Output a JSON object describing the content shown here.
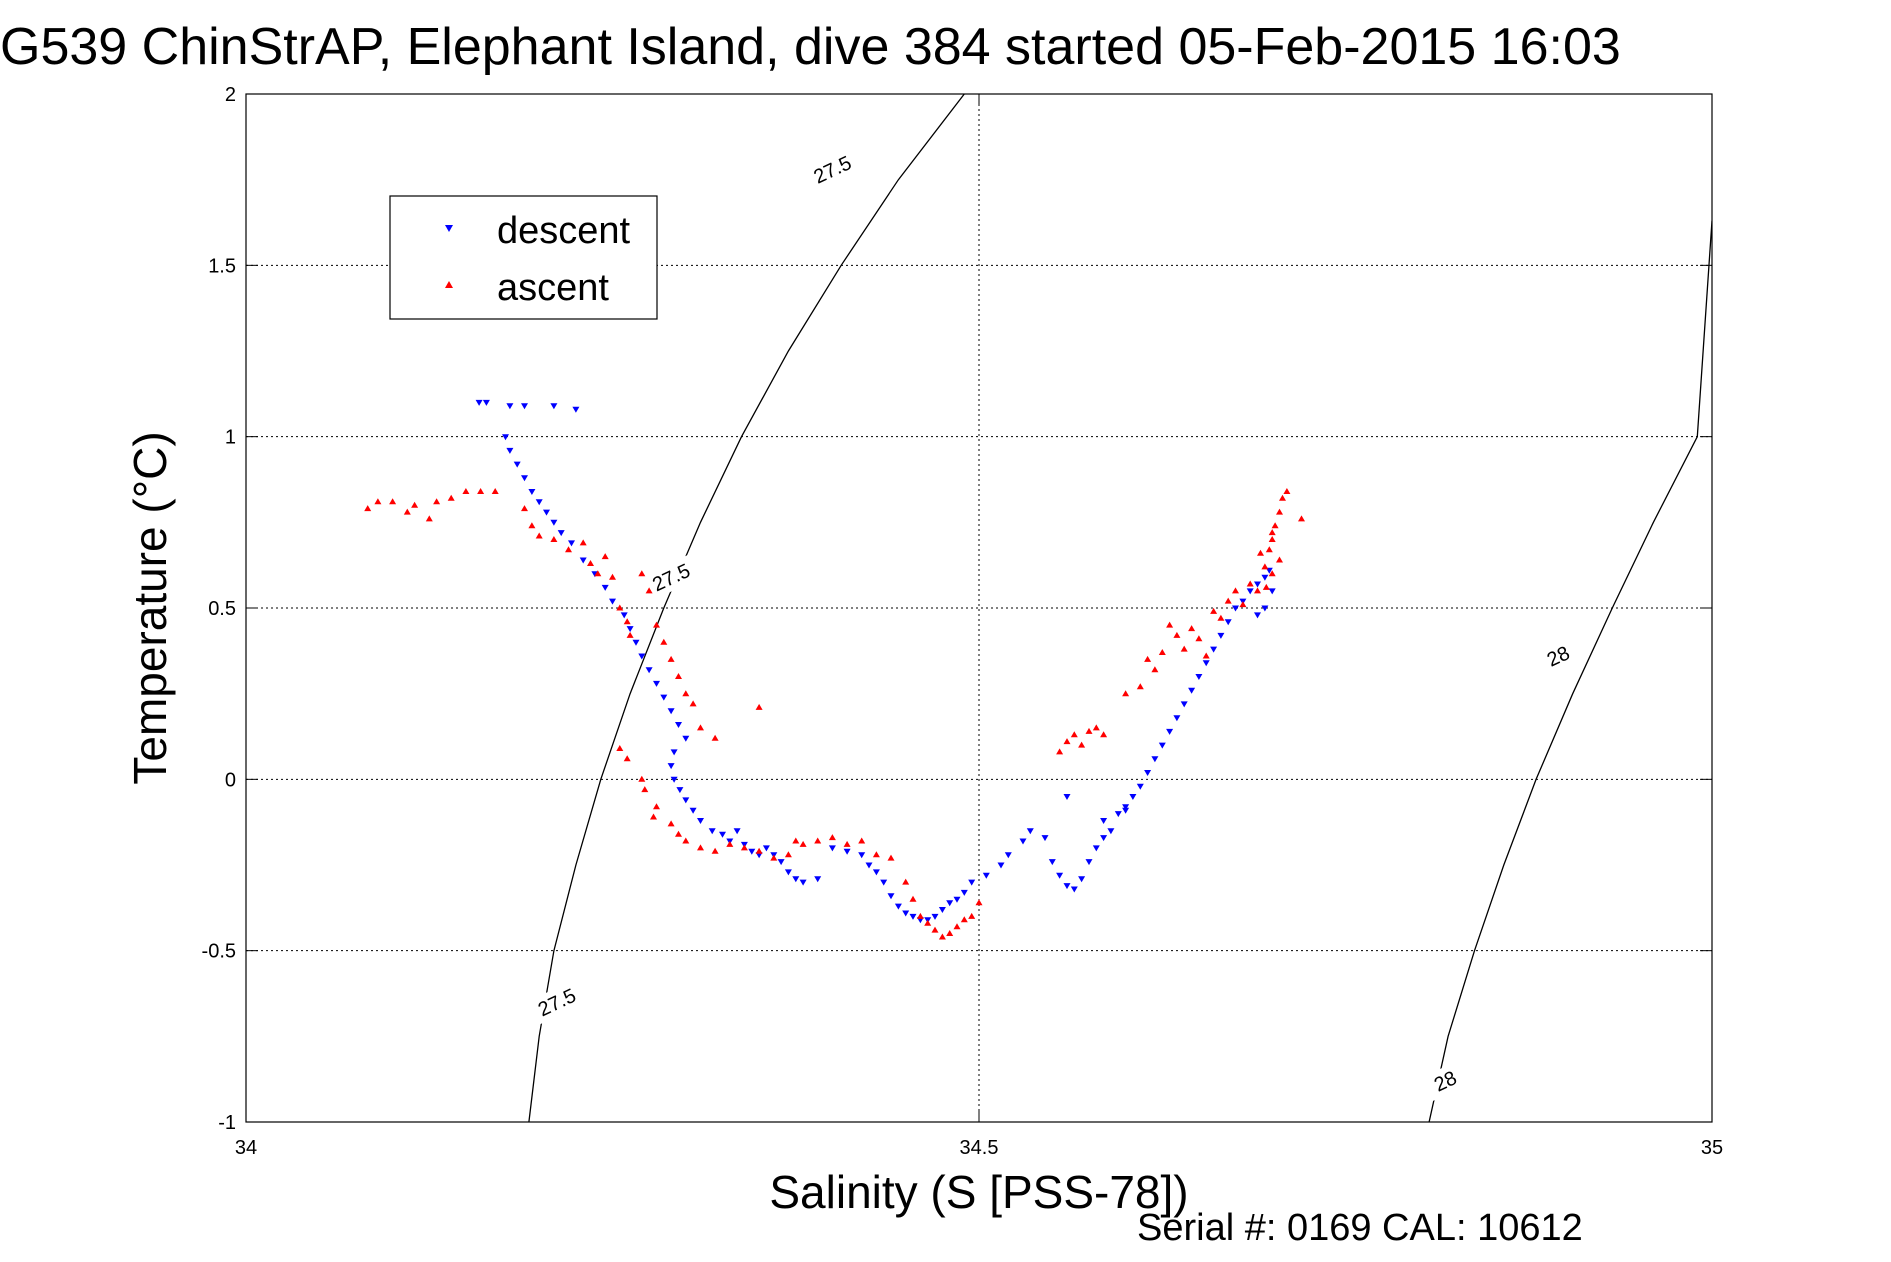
{
  "chart_data": {
    "type": "scatter",
    "title": "G539 ChinStrAP, Elephant Island, dive 384 started 05-Feb-2015 16:03",
    "xlabel": "Salinity (S [PSS-78])",
    "ylabel": "Temperature (°C)",
    "xlim": [
      34,
      35
    ],
    "ylim": [
      -1,
      2
    ],
    "xticks": [
      "34",
      "34.5",
      "35"
    ],
    "yticks": [
      "2",
      "1.5",
      "1",
      "0.5",
      "0",
      "-0.5",
      "-1"
    ],
    "grid": true,
    "legend_position": "top-left",
    "footer": "Serial #: 0169 CAL: 10612",
    "series": [
      {
        "name": "descent",
        "color": "#0000ff",
        "marker": "triangle-down",
        "points": [
          [
            34.159,
            1.1
          ],
          [
            34.164,
            1.1
          ],
          [
            34.18,
            1.09
          ],
          [
            34.19,
            1.09
          ],
          [
            34.21,
            1.09
          ],
          [
            34.225,
            1.08
          ],
          [
            34.177,
            1.0
          ],
          [
            34.18,
            0.96
          ],
          [
            34.185,
            0.92
          ],
          [
            34.19,
            0.88
          ],
          [
            34.195,
            0.84
          ],
          [
            34.2,
            0.81
          ],
          [
            34.205,
            0.78
          ],
          [
            34.21,
            0.75
          ],
          [
            34.215,
            0.72
          ],
          [
            34.222,
            0.69
          ],
          [
            34.23,
            0.64
          ],
          [
            34.238,
            0.6
          ],
          [
            34.245,
            0.56
          ],
          [
            34.25,
            0.52
          ],
          [
            34.258,
            0.48
          ],
          [
            34.262,
            0.44
          ],
          [
            34.266,
            0.4
          ],
          [
            34.27,
            0.36
          ],
          [
            34.275,
            0.32
          ],
          [
            34.28,
            0.28
          ],
          [
            34.285,
            0.24
          ],
          [
            34.29,
            0.2
          ],
          [
            34.295,
            0.16
          ],
          [
            34.3,
            0.12
          ],
          [
            34.292,
            0.08
          ],
          [
            34.29,
            0.04
          ],
          [
            34.292,
            0.0
          ],
          [
            34.296,
            -0.03
          ],
          [
            34.3,
            -0.06
          ],
          [
            34.305,
            -0.09
          ],
          [
            34.31,
            -0.12
          ],
          [
            34.318,
            -0.15
          ],
          [
            34.325,
            -0.16
          ],
          [
            34.33,
            -0.18
          ],
          [
            34.335,
            -0.15
          ],
          [
            34.34,
            -0.19
          ],
          [
            34.345,
            -0.21
          ],
          [
            34.35,
            -0.22
          ],
          [
            34.355,
            -0.2
          ],
          [
            34.36,
            -0.22
          ],
          [
            34.365,
            -0.24
          ],
          [
            34.37,
            -0.27
          ],
          [
            34.375,
            -0.29
          ],
          [
            34.38,
            -0.3
          ],
          [
            34.39,
            -0.29
          ],
          [
            34.4,
            -0.2
          ],
          [
            34.41,
            -0.21
          ],
          [
            34.42,
            -0.22
          ],
          [
            34.425,
            -0.25
          ],
          [
            34.43,
            -0.27
          ],
          [
            34.435,
            -0.3
          ],
          [
            34.44,
            -0.34
          ],
          [
            34.445,
            -0.37
          ],
          [
            34.45,
            -0.39
          ],
          [
            34.455,
            -0.4
          ],
          [
            34.46,
            -0.41
          ],
          [
            34.465,
            -0.41
          ],
          [
            34.47,
            -0.4
          ],
          [
            34.475,
            -0.38
          ],
          [
            34.48,
            -0.36
          ],
          [
            34.485,
            -0.35
          ],
          [
            34.49,
            -0.33
          ],
          [
            34.495,
            -0.3
          ],
          [
            34.505,
            -0.28
          ],
          [
            34.515,
            -0.25
          ],
          [
            34.52,
            -0.22
          ],
          [
            34.53,
            -0.18
          ],
          [
            34.535,
            -0.15
          ],
          [
            34.545,
            -0.17
          ],
          [
            34.55,
            -0.24
          ],
          [
            34.555,
            -0.28
          ],
          [
            34.56,
            -0.31
          ],
          [
            34.565,
            -0.32
          ],
          [
            34.57,
            -0.29
          ],
          [
            34.575,
            -0.24
          ],
          [
            34.58,
            -0.2
          ],
          [
            34.585,
            -0.17
          ],
          [
            34.59,
            -0.15
          ],
          [
            34.595,
            -0.1
          ],
          [
            34.6,
            -0.08
          ],
          [
            34.605,
            -0.05
          ],
          [
            34.61,
            -0.02
          ],
          [
            34.615,
            0.02
          ],
          [
            34.62,
            0.06
          ],
          [
            34.625,
            0.1
          ],
          [
            34.63,
            0.14
          ],
          [
            34.635,
            0.18
          ],
          [
            34.64,
            0.22
          ],
          [
            34.645,
            0.26
          ],
          [
            34.65,
            0.3
          ],
          [
            34.655,
            0.34
          ],
          [
            34.66,
            0.38
          ],
          [
            34.665,
            0.42
          ],
          [
            34.67,
            0.46
          ],
          [
            34.675,
            0.5
          ],
          [
            34.68,
            0.52
          ],
          [
            34.685,
            0.55
          ],
          [
            34.69,
            0.57
          ],
          [
            34.695,
            0.59
          ],
          [
            34.698,
            0.61
          ],
          [
            34.7,
            0.55
          ],
          [
            34.695,
            0.5
          ],
          [
            34.69,
            0.48
          ],
          [
            34.6,
            -0.09
          ],
          [
            34.585,
            -0.12
          ],
          [
            34.56,
            -0.05
          ]
        ]
      },
      {
        "name": "ascent",
        "color": "#ff0000",
        "marker": "triangle-up",
        "points": [
          [
            34.083,
            0.79
          ],
          [
            34.09,
            0.81
          ],
          [
            34.1,
            0.81
          ],
          [
            34.11,
            0.78
          ],
          [
            34.115,
            0.8
          ],
          [
            34.125,
            0.76
          ],
          [
            34.13,
            0.81
          ],
          [
            34.14,
            0.82
          ],
          [
            34.15,
            0.84
          ],
          [
            34.16,
            0.84
          ],
          [
            34.17,
            0.84
          ],
          [
            34.19,
            0.79
          ],
          [
            34.195,
            0.74
          ],
          [
            34.2,
            0.71
          ],
          [
            34.21,
            0.7
          ],
          [
            34.22,
            0.67
          ],
          [
            34.23,
            0.69
          ],
          [
            34.235,
            0.63
          ],
          [
            34.24,
            0.6
          ],
          [
            34.245,
            0.65
          ],
          [
            34.25,
            0.59
          ],
          [
            34.255,
            0.5
          ],
          [
            34.26,
            0.46
          ],
          [
            34.262,
            0.42
          ],
          [
            34.27,
            0.6
          ],
          [
            34.275,
            0.55
          ],
          [
            34.28,
            0.45
          ],
          [
            34.285,
            0.4
          ],
          [
            34.29,
            0.35
          ],
          [
            34.295,
            0.3
          ],
          [
            34.3,
            0.25
          ],
          [
            34.305,
            0.22
          ],
          [
            34.31,
            0.15
          ],
          [
            34.32,
            0.12
          ],
          [
            34.35,
            0.21
          ],
          [
            34.255,
            0.09
          ],
          [
            34.26,
            0.06
          ],
          [
            34.27,
            0.0
          ],
          [
            34.272,
            -0.03
          ],
          [
            34.28,
            -0.08
          ],
          [
            34.278,
            -0.11
          ],
          [
            34.29,
            -0.13
          ],
          [
            34.295,
            -0.16
          ],
          [
            34.3,
            -0.18
          ],
          [
            34.31,
            -0.2
          ],
          [
            34.32,
            -0.21
          ],
          [
            34.33,
            -0.19
          ],
          [
            34.34,
            -0.2
          ],
          [
            34.35,
            -0.21
          ],
          [
            34.36,
            -0.23
          ],
          [
            34.37,
            -0.22
          ],
          [
            34.375,
            -0.18
          ],
          [
            34.38,
            -0.19
          ],
          [
            34.39,
            -0.18
          ],
          [
            34.4,
            -0.17
          ],
          [
            34.41,
            -0.19
          ],
          [
            34.42,
            -0.18
          ],
          [
            34.43,
            -0.22
          ],
          [
            34.44,
            -0.23
          ],
          [
            34.45,
            -0.3
          ],
          [
            34.455,
            -0.35
          ],
          [
            34.46,
            -0.4
          ],
          [
            34.465,
            -0.42
          ],
          [
            34.47,
            -0.44
          ],
          [
            34.475,
            -0.46
          ],
          [
            34.48,
            -0.45
          ],
          [
            34.485,
            -0.43
          ],
          [
            34.49,
            -0.41
          ],
          [
            34.495,
            -0.4
          ],
          [
            34.5,
            -0.36
          ],
          [
            34.555,
            0.08
          ],
          [
            34.56,
            0.11
          ],
          [
            34.565,
            0.13
          ],
          [
            34.57,
            0.1
          ],
          [
            34.575,
            0.14
          ],
          [
            34.58,
            0.15
          ],
          [
            34.585,
            0.13
          ],
          [
            34.6,
            0.25
          ],
          [
            34.61,
            0.27
          ],
          [
            34.615,
            0.35
          ],
          [
            34.62,
            0.32
          ],
          [
            34.625,
            0.37
          ],
          [
            34.63,
            0.45
          ],
          [
            34.635,
            0.42
          ],
          [
            34.64,
            0.38
          ],
          [
            34.645,
            0.44
          ],
          [
            34.65,
            0.41
          ],
          [
            34.655,
            0.36
          ],
          [
            34.66,
            0.49
          ],
          [
            34.665,
            0.47
          ],
          [
            34.67,
            0.52
          ],
          [
            34.675,
            0.55
          ],
          [
            34.68,
            0.51
          ],
          [
            34.685,
            0.57
          ],
          [
            34.69,
            0.55
          ],
          [
            34.695,
            0.62
          ],
          [
            34.698,
            0.67
          ],
          [
            34.7,
            0.7
          ],
          [
            34.702,
            0.74
          ],
          [
            34.705,
            0.78
          ],
          [
            34.707,
            0.82
          ],
          [
            34.71,
            0.84
          ],
          [
            34.7,
            0.72
          ],
          [
            34.705,
            0.64
          ],
          [
            34.7,
            0.6
          ],
          [
            34.696,
            0.56
          ],
          [
            34.692,
            0.66
          ],
          [
            34.72,
            0.76
          ]
        ]
      }
    ],
    "contours": [
      {
        "label": "27.5",
        "points": [
          [
            34.193,
            -1.0
          ],
          [
            34.2,
            -0.75
          ],
          [
            34.21,
            -0.5
          ],
          [
            34.225,
            -0.25
          ],
          [
            34.242,
            0.0
          ],
          [
            34.262,
            0.25
          ],
          [
            34.285,
            0.5
          ],
          [
            34.31,
            0.75
          ],
          [
            34.338,
            1.0
          ],
          [
            34.37,
            1.25
          ],
          [
            34.406,
            1.5
          ],
          [
            34.445,
            1.75
          ],
          [
            34.49,
            2.0
          ]
        ],
        "label_positions": [
          [
            34.212,
            -0.65
          ],
          [
            34.29,
            0.59
          ],
          [
            34.4,
            1.78
          ]
        ]
      },
      {
        "label": "28",
        "points": [
          [
            34.807,
            -1.0
          ],
          [
            34.82,
            -0.75
          ],
          [
            34.838,
            -0.5
          ],
          [
            34.858,
            -0.25
          ],
          [
            34.88,
            0.0
          ],
          [
            34.905,
            0.25
          ],
          [
            34.932,
            0.5
          ],
          [
            34.96,
            0.75
          ],
          [
            34.99,
            1.0
          ],
          [
            35.0,
            1.63
          ]
        ],
        "label_positions": [
          [
            34.818,
            -0.88
          ],
          [
            34.895,
            0.36
          ]
        ]
      }
    ]
  }
}
